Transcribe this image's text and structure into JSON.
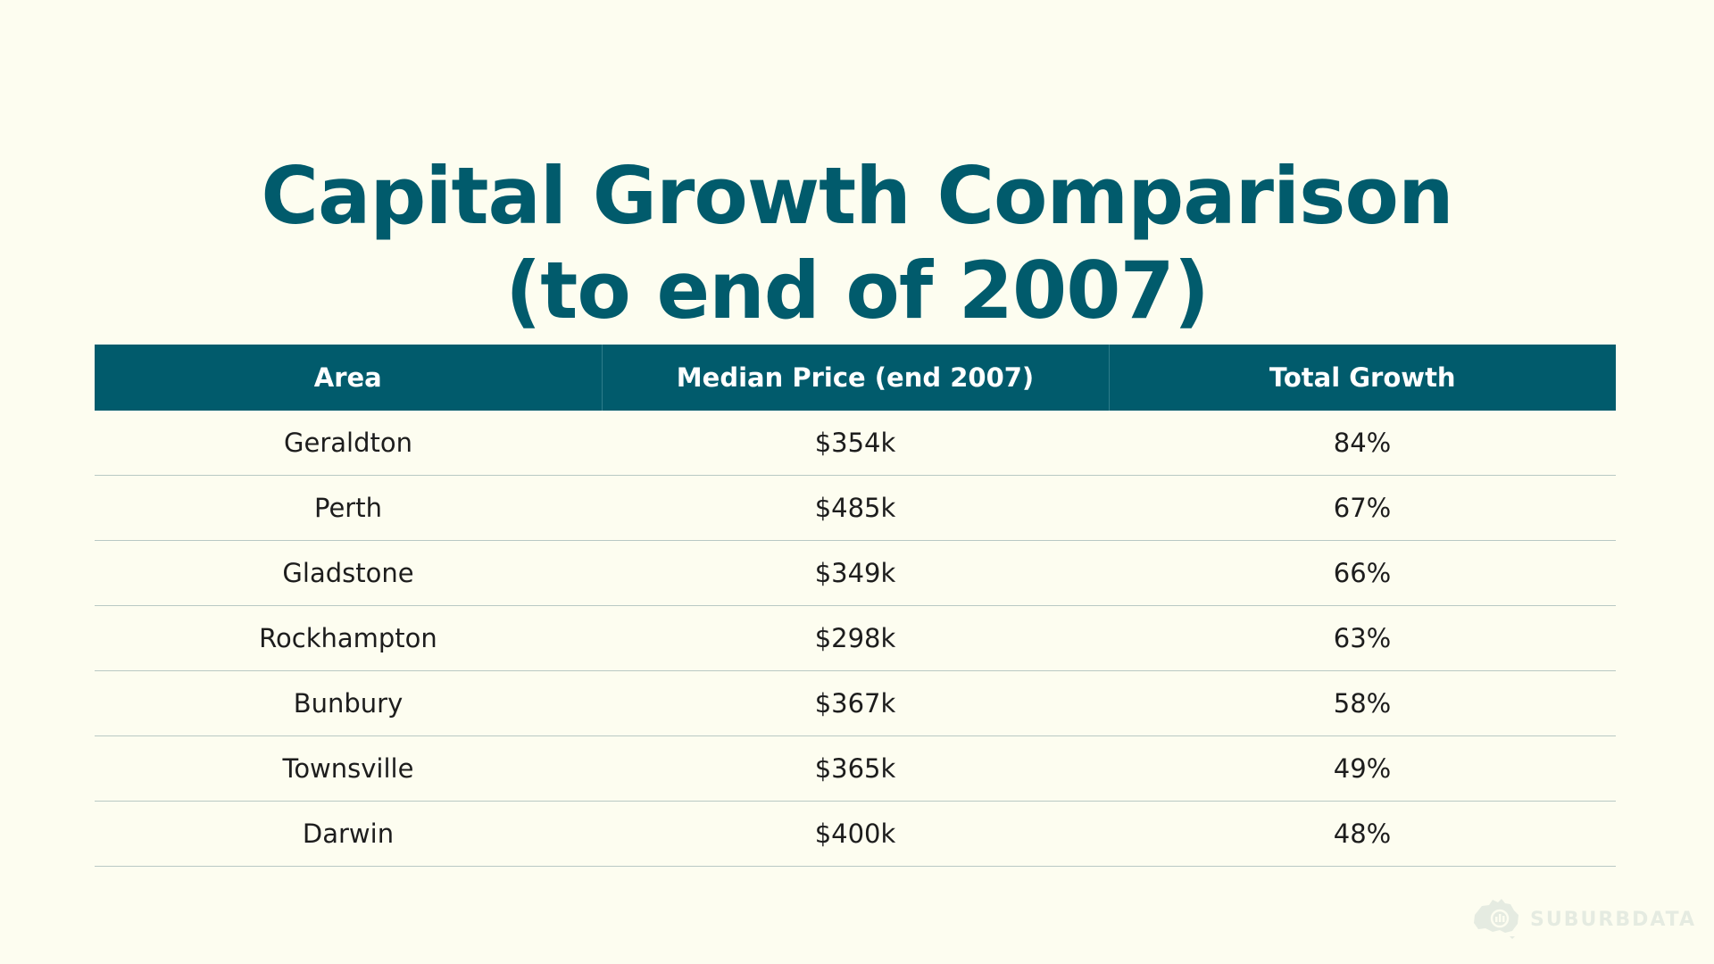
{
  "title": {
    "line1": "Capital Growth Comparison",
    "line2": "(to end of 2007)"
  },
  "table": {
    "headers": [
      "Area",
      "Median Price (end 2007)",
      "Total Growth"
    ],
    "rows": [
      [
        "Geraldton",
        "$354k",
        "84%"
      ],
      [
        "Perth",
        "$485k",
        "67%"
      ],
      [
        "Gladstone",
        "$349k",
        "66%"
      ],
      [
        "Rockhampton",
        "$298k",
        "63%"
      ],
      [
        "Bunbury",
        "$367k",
        "58%"
      ],
      [
        "Townsville",
        "$365k",
        "49%"
      ],
      [
        "Darwin",
        "$400k",
        "48%"
      ]
    ]
  },
  "watermark": {
    "brand": "SUBURBDATA",
    "icon": "australia-map-icon"
  },
  "colors": {
    "accent": "#015b6c",
    "background": "#fdfdf0",
    "row_divider": "#b9c9c4"
  }
}
